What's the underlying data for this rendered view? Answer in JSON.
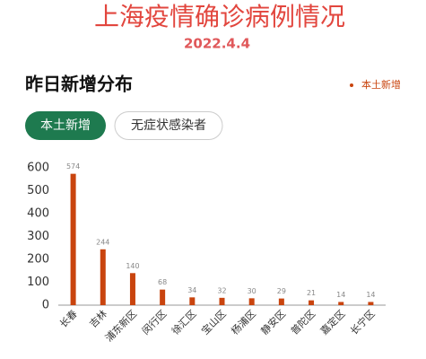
{
  "header": {
    "title": "上海疫情确诊病例情况",
    "date": "2022.4.4"
  },
  "section": {
    "title": "昨日新增分布"
  },
  "tabs": [
    "本土新增",
    "无症状感染者"
  ],
  "chart_data": {
    "type": "bar",
    "categories": [
      "长春",
      "吉林",
      "浦东新区",
      "闵行区",
      "徐汇区",
      "宝山区",
      "杨浦区",
      "静安区",
      "普陀区",
      "嘉定区",
      "长宁区"
    ],
    "series": [
      {
        "name": "本土新增",
        "color": "#c9440e",
        "values": [
          574,
          244,
          140,
          68,
          34,
          32,
          30,
          29,
          21,
          14,
          14
        ]
      }
    ],
    "ylim": [
      0,
      600
    ],
    "yticks": [
      0,
      100,
      200,
      300,
      400,
      500,
      600
    ],
    "grid": false,
    "legend": "top-right"
  }
}
